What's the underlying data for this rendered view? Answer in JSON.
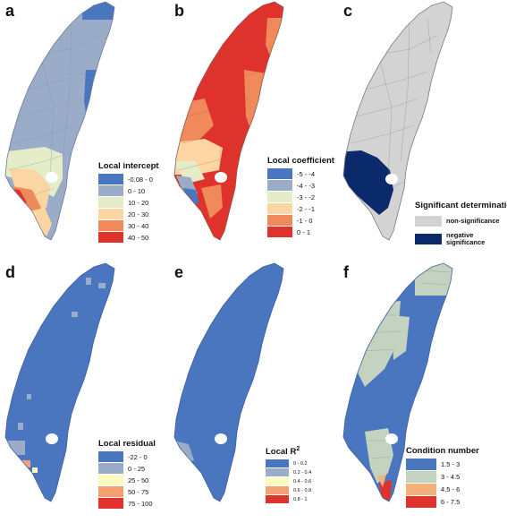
{
  "panels": [
    {
      "id": "a",
      "label": "a",
      "legend": {
        "title": "Local intercept",
        "items": [
          {
            "label": "-0.08 - 0",
            "color": "#4a75bf"
          },
          {
            "label": "0 - 10",
            "color": "#9aacc8"
          },
          {
            "label": "10 - 20",
            "color": "#e4ecc8"
          },
          {
            "label": "20 - 30",
            "color": "#fbd6a2"
          },
          {
            "label": "30 - 40",
            "color": "#f08a5a"
          },
          {
            "label": "40 - 50",
            "color": "#e0322d"
          }
        ]
      }
    },
    {
      "id": "b",
      "label": "b",
      "legend": {
        "title": "Local coefficient",
        "items": [
          {
            "label": "-5 - -4",
            "color": "#4a75bf"
          },
          {
            "label": "-4 - -3",
            "color": "#9aacc8"
          },
          {
            "label": "-3 - -2",
            "color": "#e4ecc8"
          },
          {
            "label": "-2 - -1",
            "color": "#fbd6a2"
          },
          {
            "label": "-1 - 0",
            "color": "#f08a5a"
          },
          {
            "label": "0 - 1",
            "color": "#e0322d"
          }
        ]
      }
    },
    {
      "id": "c",
      "label": "c",
      "legend": {
        "title": "Significant determination",
        "items": [
          {
            "label": "non-significance",
            "color": "#d3d3d3"
          },
          {
            "label": "negative significance",
            "label_line1": "negative",
            "label_line2": "significance",
            "color": "#0b2a6b"
          }
        ]
      }
    },
    {
      "id": "d",
      "label": "d",
      "legend": {
        "title": "Local residual",
        "items": [
          {
            "label": "-22 - 0",
            "color": "#4a75bf"
          },
          {
            "label": "0 - 25",
            "color": "#9aacc8"
          },
          {
            "label": "25 - 50",
            "color": "#fbfbc0"
          },
          {
            "label": "50 - 75",
            "color": "#f4a072"
          },
          {
            "label": "75 - 100",
            "color": "#e0322d"
          }
        ]
      }
    },
    {
      "id": "e",
      "label": "e",
      "legend": {
        "title": "Local R",
        "title_sup": "2",
        "items": [
          {
            "label": "0 - 0.2",
            "color": "#4a75bf"
          },
          {
            "label": "0.2 - 0.4",
            "color": "#9aacc8"
          },
          {
            "label": "0.4 - 0.6",
            "color": "#fbfbc0"
          },
          {
            "label": "0.6 - 0.8",
            "color": "#f4a072"
          },
          {
            "label": "0.8 - 1",
            "color": "#e0322d"
          }
        ]
      }
    },
    {
      "id": "f",
      "label": "f",
      "legend": {
        "title": "Condition number",
        "items": [
          {
            "label": "1.5 - 3",
            "color": "#4a75bf"
          },
          {
            "label": "3 - 4.5",
            "color": "#c3d3c0"
          },
          {
            "label": "4.5 - 6",
            "color": "#f4b07a"
          },
          {
            "label": "6 - 7.5",
            "color": "#e0322d"
          }
        ]
      }
    }
  ]
}
